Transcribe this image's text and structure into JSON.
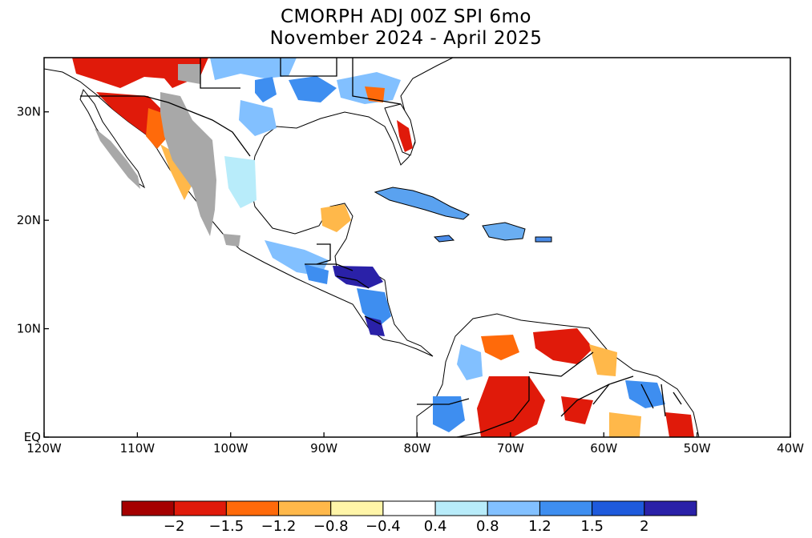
{
  "header": {
    "title": "CMORPH ADJ 00Z SPI 6mo",
    "subtitle": "November 2024 - April 2025"
  },
  "axes": {
    "lat_labels": [
      "EQ",
      "10N",
      "20N",
      "30N"
    ],
    "lon_labels": [
      "120W",
      "110W",
      "100W",
      "90W",
      "80W",
      "70W",
      "60W",
      "50W",
      "40W"
    ]
  },
  "colorbar": {
    "labels": [
      "-2",
      "-1.5",
      "-1.2",
      "-0.8",
      "-0.4",
      "0.4",
      "0.8",
      "1.2",
      "1.5",
      "2"
    ],
    "colors": [
      "#a50000",
      "#e01a0a",
      "#ff6a0a",
      "#ffb84a",
      "#fff5a8",
      "#ffffff",
      "#b8ecfa",
      "#82c0ff",
      "#3e8ef0",
      "#1e5adc",
      "#2a21a8"
    ]
  },
  "colors": {
    "no_data": "#a8a8a8"
  }
}
